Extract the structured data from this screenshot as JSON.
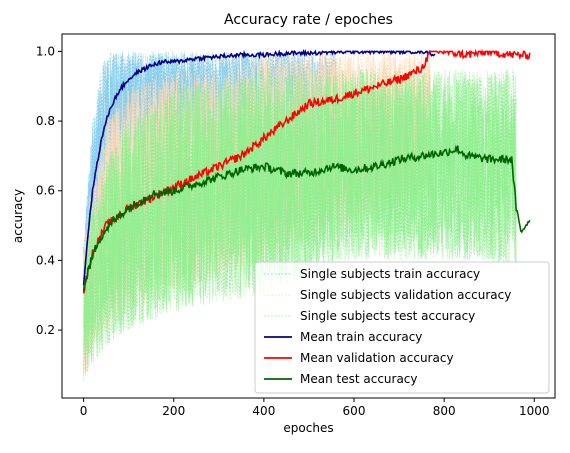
{
  "chart_data": {
    "type": "line",
    "title": "Accuracy rate / epoches",
    "xlabel": "epoches",
    "ylabel": "accuracy",
    "xlim": [
      -48,
      1046
    ],
    "ylim": [
      0.005,
      1.05
    ],
    "xticks": [
      0,
      200,
      400,
      600,
      800,
      1000
    ],
    "yticks": [
      0.2,
      0.4,
      0.6,
      0.8,
      1.0
    ],
    "xtick_labels": [
      "0",
      "200",
      "400",
      "600",
      "800",
      "1000"
    ],
    "ytick_labels": [
      "0.2",
      "0.4",
      "0.6",
      "0.8",
      "1.0"
    ],
    "legend_position": "lower-right",
    "grid": false,
    "series": [
      {
        "name": "Single subjects train accuracy",
        "style": "band-dashed",
        "color": "#87ceeb",
        "x": [
          0,
          20,
          40,
          60,
          100,
          150,
          200,
          300,
          400,
          500,
          560
        ],
        "low": [
          0.3,
          0.4,
          0.55,
          0.65,
          0.7,
          0.75,
          0.75,
          0.72,
          0.7,
          0.7,
          0.7
        ],
        "high": [
          0.45,
          0.8,
          0.97,
          1.0,
          1.0,
          1.0,
          1.0,
          1.0,
          1.0,
          1.0,
          1.0
        ]
      },
      {
        "name": "Single subjects validation accuracy",
        "style": "band-dashed",
        "color": "#ffdab9",
        "x": [
          0,
          20,
          50,
          100,
          200,
          300,
          400,
          500,
          600,
          700,
          770
        ],
        "low": [
          0.05,
          0.15,
          0.2,
          0.25,
          0.3,
          0.35,
          0.4,
          0.45,
          0.5,
          0.55,
          0.6
        ],
        "high": [
          0.45,
          0.65,
          0.8,
          0.9,
          0.95,
          0.95,
          1.0,
          1.0,
          1.0,
          1.0,
          1.0
        ]
      },
      {
        "name": "Single subjects test accuracy",
        "style": "band-dashed",
        "color": "#90ee90",
        "x": [
          0,
          20,
          50,
          100,
          200,
          300,
          400,
          500,
          600,
          700,
          800,
          900,
          960
        ],
        "low": [
          0.05,
          0.1,
          0.15,
          0.2,
          0.25,
          0.28,
          0.3,
          0.35,
          0.4,
          0.4,
          0.4,
          0.4,
          0.38
        ],
        "high": [
          0.4,
          0.55,
          0.7,
          0.8,
          0.9,
          0.92,
          0.95,
          0.95,
          0.95,
          0.95,
          0.95,
          0.95,
          0.95
        ]
      },
      {
        "name": "Mean train accuracy",
        "style": "solid",
        "color": "#00008b",
        "x": [
          0,
          10,
          20,
          30,
          40,
          50,
          60,
          80,
          100,
          120,
          150,
          175,
          200,
          250,
          300,
          350,
          400,
          450,
          500,
          600,
          700,
          760,
          780
        ],
        "y": [
          0.33,
          0.48,
          0.6,
          0.68,
          0.75,
          0.8,
          0.84,
          0.89,
          0.92,
          0.94,
          0.96,
          0.97,
          0.97,
          0.98,
          0.985,
          0.99,
          0.99,
          0.995,
          0.995,
          1.0,
          1.0,
          1.0,
          0.99
        ]
      },
      {
        "name": "Mean validation accuracy",
        "style": "solid",
        "color": "#ff0000",
        "x": [
          0,
          10,
          20,
          30,
          50,
          80,
          100,
          150,
          200,
          250,
          300,
          350,
          400,
          450,
          500,
          550,
          600,
          650,
          700,
          750,
          770,
          800,
          850,
          900,
          950,
          990
        ],
        "y": [
          0.31,
          0.37,
          0.42,
          0.45,
          0.5,
          0.53,
          0.55,
          0.58,
          0.61,
          0.64,
          0.67,
          0.7,
          0.75,
          0.8,
          0.85,
          0.86,
          0.88,
          0.9,
          0.92,
          0.95,
          1.0,
          1.0,
          0.99,
          1.0,
          0.99,
          0.99
        ]
      },
      {
        "name": "Mean test accuracy",
        "style": "solid",
        "color": "#006400",
        "x": [
          0,
          10,
          20,
          30,
          50,
          80,
          100,
          150,
          200,
          250,
          300,
          350,
          400,
          450,
          500,
          550,
          600,
          650,
          700,
          750,
          800,
          830,
          850,
          900,
          950,
          960,
          970,
          990
        ],
        "y": [
          0.32,
          0.37,
          0.41,
          0.45,
          0.49,
          0.53,
          0.55,
          0.59,
          0.6,
          0.62,
          0.64,
          0.66,
          0.67,
          0.65,
          0.65,
          0.67,
          0.66,
          0.67,
          0.69,
          0.7,
          0.71,
          0.72,
          0.7,
          0.69,
          0.69,
          0.55,
          0.48,
          0.52
        ]
      }
    ]
  }
}
